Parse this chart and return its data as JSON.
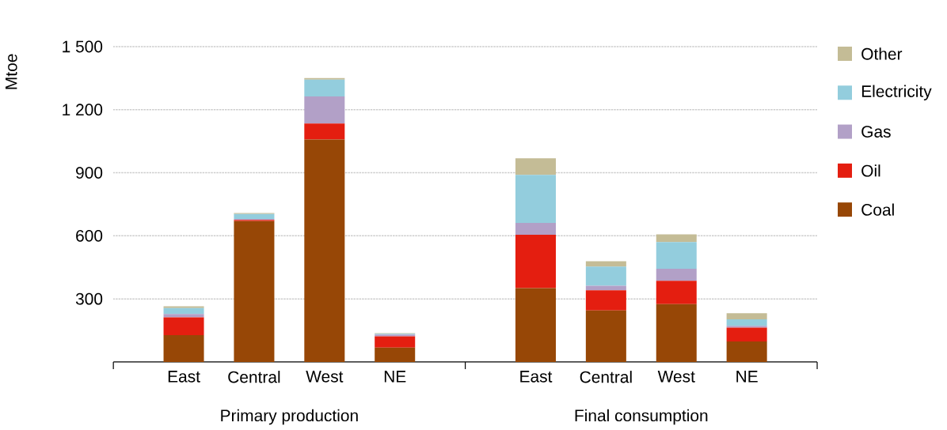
{
  "chart_data": {
    "type": "bar",
    "stacked": true,
    "ylabel": "Mtoe",
    "categories": [
      "East",
      "Central",
      "West",
      "NE",
      "East",
      "Central",
      "West",
      "NE"
    ],
    "series": [
      {
        "name": "Coal",
        "color": "#974706",
        "values": [
          128,
          670,
          1058,
          68,
          351,
          245,
          275,
          97
        ]
      },
      {
        "name": "Oil",
        "color": "#e41e10",
        "values": [
          84,
          6,
          76,
          54,
          254,
          96,
          111,
          66
        ]
      },
      {
        "name": "Gas",
        "color": "#b2a0c7",
        "values": [
          16,
          4,
          129,
          8,
          56,
          22,
          57,
          9
        ]
      },
      {
        "name": "Electricity",
        "color": "#93cddd",
        "values": [
          28,
          24,
          80,
          4,
          229,
          91,
          127,
          31
        ]
      },
      {
        "name": "Other",
        "color": "#c4bc96",
        "values": [
          9,
          4,
          7,
          3,
          79,
          25,
          37,
          29
        ]
      }
    ],
    "ylim": [
      0,
      1500
    ],
    "yticks": [
      {
        "value": 300,
        "label": "300"
      },
      {
        "value": 600,
        "label": "600"
      },
      {
        "value": 900,
        "label": "900"
      },
      {
        "value": 1200,
        "label": "1 200"
      },
      {
        "value": 1500,
        "label": "1 500"
      }
    ],
    "grid": "y",
    "legend": "right",
    "annotations": [
      "Primary production",
      "Final consumption"
    ]
  }
}
